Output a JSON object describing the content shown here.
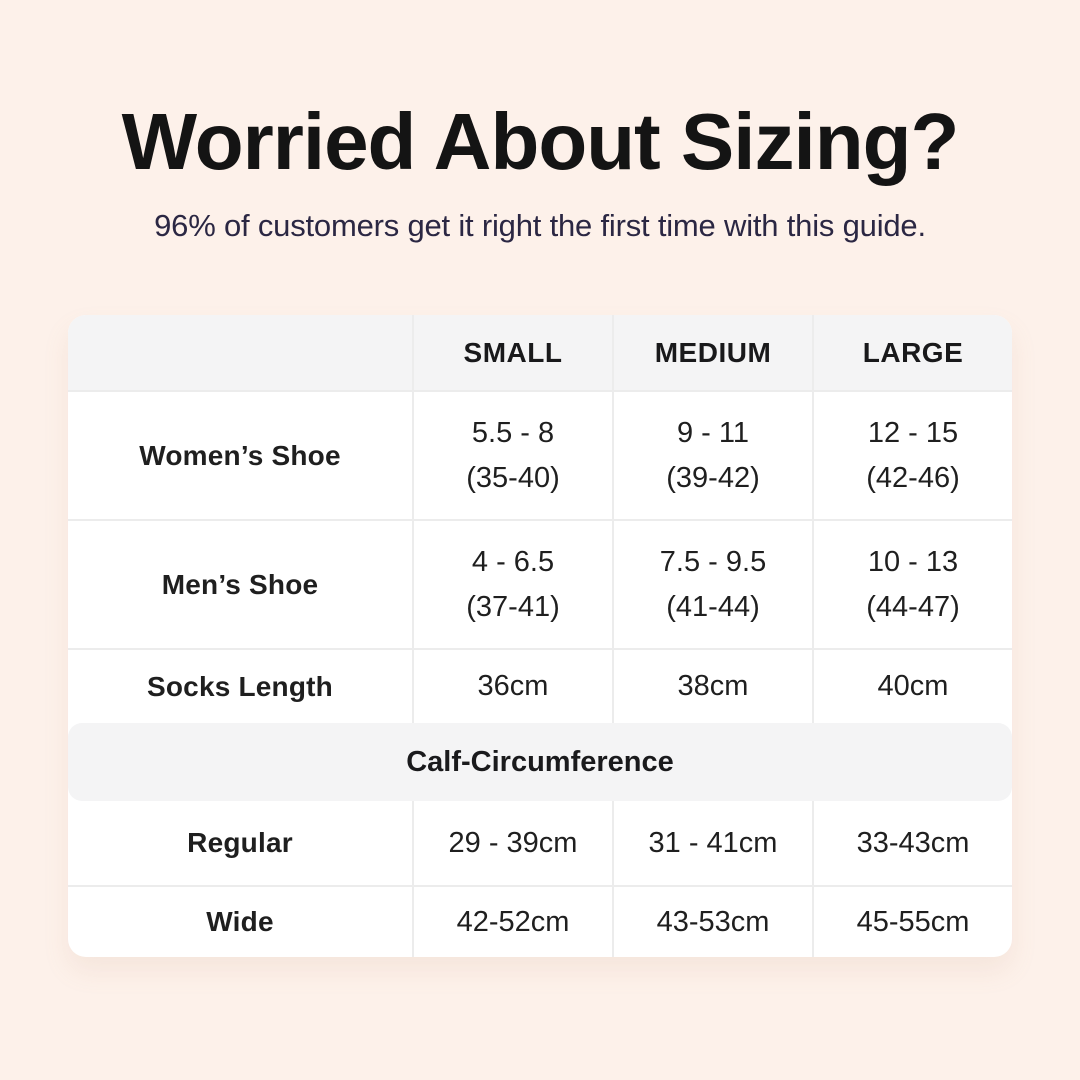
{
  "colors": {
    "page_bg": "#fdf1ea",
    "table_bg": "#ffffff",
    "header_bg": "#f4f4f5",
    "divider": "#ececec",
    "title_text": "#141414",
    "subtitle_text": "#2b2743",
    "cell_text": "#1f1f1f"
  },
  "header": {
    "title": "Worried About Sizing?",
    "subtitle": "96% of customers get it right the first time with this guide."
  },
  "chart_data": {
    "type": "table",
    "columns": [
      "",
      "SMALL",
      "MEDIUM",
      "LARGE"
    ],
    "rows": [
      {
        "label": "Women’s Shoe",
        "cells": [
          [
            "5.5 - 8",
            "(35-40)"
          ],
          [
            "9 - 11",
            "(39-42)"
          ],
          [
            "12 - 15",
            "(42-46)"
          ]
        ]
      },
      {
        "label": "Men’s Shoe",
        "cells": [
          [
            "4 - 6.5",
            "(37-41)"
          ],
          [
            "7.5 - 9.5",
            "(41-44)"
          ],
          [
            "10 - 13",
            "(44-47)"
          ]
        ]
      },
      {
        "label": "Socks Length",
        "cells": [
          [
            "36cm"
          ],
          [
            "38cm"
          ],
          [
            "40cm"
          ]
        ]
      }
    ],
    "section_header": "Calf-Circumference",
    "section_rows": [
      {
        "label": "Regular",
        "cells": [
          [
            "29 - 39cm"
          ],
          [
            "31 - 41cm"
          ],
          [
            "33-43cm"
          ]
        ]
      },
      {
        "label": "Wide",
        "cells": [
          [
            "42-52cm"
          ],
          [
            "43-53cm"
          ],
          [
            "45-55cm"
          ]
        ]
      }
    ]
  }
}
